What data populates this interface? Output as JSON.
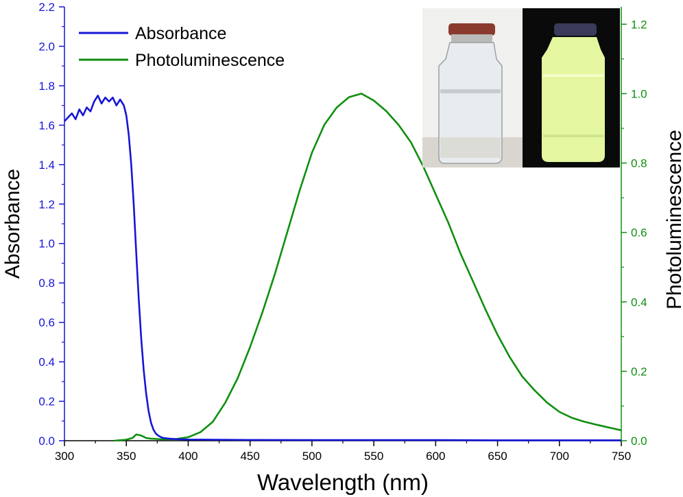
{
  "chart_data": {
    "type": "line",
    "title": "",
    "xlabel": "Wavelength (nm)",
    "ylabel_left": "Absorbance",
    "ylabel_right": "Photoluminescence",
    "xlim": [
      300,
      750
    ],
    "ylim_left": [
      0,
      2.2
    ],
    "ylim_right": [
      0,
      1.25
    ],
    "x_ticks": [
      "300",
      "350",
      "400",
      "450",
      "500",
      "550",
      "600",
      "650",
      "700",
      "750"
    ],
    "y_left_ticks": [
      "0.0",
      "0.2",
      "0.4",
      "0.6",
      "0.8",
      "1.0",
      "1.2",
      "1.4",
      "1.6",
      "1.8",
      "2.0",
      "2.2"
    ],
    "y_right_ticks": [
      "0.0",
      "0.2",
      "0.4",
      "0.6",
      "0.8",
      "1.0",
      "1.2"
    ],
    "grid": false,
    "legend_position": "top-left",
    "colors": {
      "absorbance": "#1515d6",
      "photoluminescence": "#0e8f0e",
      "axis_left": "#1515d6",
      "axis_right": "#0e8f0e",
      "axis": "#000000"
    },
    "series": [
      {
        "name": "Absorbance",
        "axis": "left",
        "x": [
          300,
          303,
          306,
          309,
          312,
          315,
          318,
          321,
          324,
          327,
          330,
          333,
          336,
          339,
          342,
          345,
          348,
          350,
          352,
          354,
          356,
          358,
          360,
          362,
          364,
          366,
          368,
          370,
          372,
          374,
          376,
          378,
          380,
          385,
          390,
          400,
          420,
          450,
          500,
          550,
          600,
          650,
          700,
          750
        ],
        "values": [
          1.62,
          1.64,
          1.66,
          1.63,
          1.68,
          1.65,
          1.69,
          1.67,
          1.72,
          1.75,
          1.71,
          1.74,
          1.72,
          1.74,
          1.7,
          1.73,
          1.7,
          1.65,
          1.55,
          1.4,
          1.2,
          0.95,
          0.72,
          0.52,
          0.36,
          0.24,
          0.15,
          0.09,
          0.055,
          0.035,
          0.025,
          0.018,
          0.014,
          0.01,
          0.008,
          0.006,
          0.005,
          0.004,
          0.003,
          0.003,
          0.003,
          0.002,
          0.002,
          0.002
        ]
      },
      {
        "name": "Photoluminescence",
        "axis": "right",
        "x": [
          340,
          350,
          355,
          358,
          362,
          366,
          370,
          375,
          380,
          390,
          400,
          410,
          420,
          430,
          440,
          450,
          460,
          470,
          480,
          490,
          500,
          510,
          520,
          530,
          540,
          550,
          560,
          570,
          580,
          590,
          600,
          610,
          620,
          630,
          640,
          650,
          660,
          670,
          680,
          690,
          700,
          710,
          720,
          730,
          740,
          750
        ],
        "values": [
          0.0,
          0.003,
          0.008,
          0.018,
          0.015,
          0.008,
          0.006,
          0.005,
          0.004,
          0.005,
          0.01,
          0.025,
          0.055,
          0.11,
          0.18,
          0.27,
          0.37,
          0.48,
          0.6,
          0.72,
          0.83,
          0.91,
          0.96,
          0.99,
          1.0,
          0.98,
          0.95,
          0.91,
          0.86,
          0.79,
          0.71,
          0.63,
          0.54,
          0.46,
          0.38,
          0.305,
          0.24,
          0.185,
          0.145,
          0.11,
          0.083,
          0.066,
          0.055,
          0.046,
          0.038,
          0.03
        ]
      }
    ]
  },
  "inset": {
    "description_name": "vial-photos",
    "left_photo": {
      "background": "#f2f2f2",
      "cap": "#8b3a2e",
      "liquid": "#e6ebee"
    },
    "right_photo": {
      "background": "#0a0a0a",
      "cap": "#3a3a5a",
      "liquid": "#e4f7a0"
    }
  }
}
